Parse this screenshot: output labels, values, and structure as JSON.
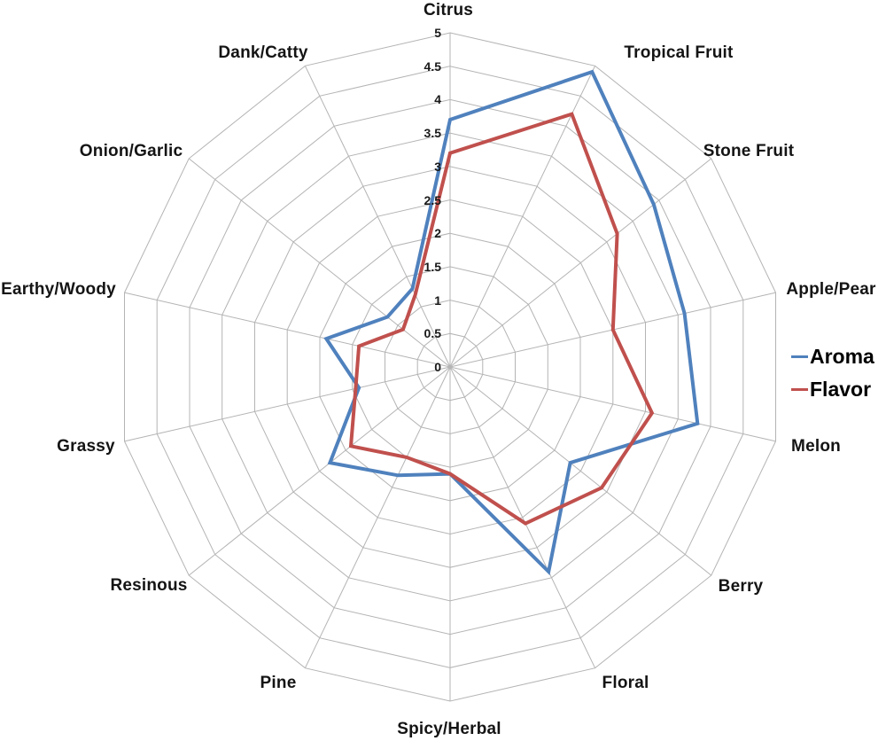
{
  "chart_data": {
    "type": "radar",
    "title": "",
    "categories": [
      "Citrus",
      "Tropical Fruit",
      "Stone Fruit",
      "Apple/Pear",
      "Melon",
      "Berry",
      "Floral",
      "Spicy/Herbal",
      "Pine",
      "Resinous",
      "Grassy",
      "Earthy/Woody",
      "Onion/Garlic",
      "Dank/Catty"
    ],
    "axis": {
      "min": 0,
      "max": 5,
      "tick_interval": 0.5,
      "tick_labels": [
        "0",
        "0.5",
        "1",
        "1.5",
        "2",
        "2.5",
        "3",
        "3.5",
        "4",
        "4.5",
        "5"
      ]
    },
    "series": [
      {
        "name": "Aroma",
        "color": "#4F81BD",
        "values": [
          3.7,
          4.9,
          3.9,
          3.6,
          3.8,
          2.3,
          3.4,
          1.6,
          1.8,
          2.3,
          1.4,
          1.9,
          1.2,
          1.3
        ]
      },
      {
        "name": "Flavor",
        "color": "#C0504D",
        "values": [
          3.2,
          4.2,
          3.2,
          2.5,
          3.1,
          2.9,
          2.6,
          1.6,
          1.5,
          1.9,
          1.45,
          1.4,
          0.9,
          1.2
        ]
      }
    ],
    "legend": {
      "position": "right",
      "items": [
        "Aroma",
        "Flavor"
      ]
    },
    "grid": {
      "color": "#B4B4B4",
      "rings": 10,
      "spokes": 14
    },
    "label_color": "#141414"
  }
}
